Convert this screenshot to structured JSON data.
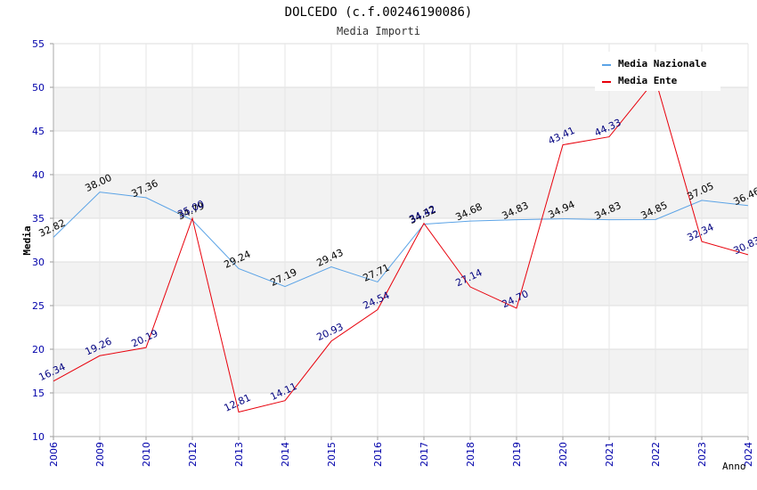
{
  "chart_data": {
    "type": "line",
    "title": "DOLCEDO (c.f.00246190086)",
    "subtitle": "Media Importi",
    "xlabel": "Anno",
    "ylabel": "Media",
    "ylim": [
      10,
      55
    ],
    "yticks": [
      10,
      15,
      20,
      25,
      30,
      35,
      40,
      45,
      50,
      55
    ],
    "grid": true,
    "legend_position": "top-right",
    "categories": [
      "2006",
      "2009",
      "2010",
      "2012",
      "2013",
      "2014",
      "2015",
      "2016",
      "2017",
      "2018",
      "2019",
      "2020",
      "2021",
      "2022",
      "2023",
      "2024"
    ],
    "series": [
      {
        "name": "Media Nazionale",
        "color": "#5ba3e6",
        "label_color": "#000000",
        "values": [
          32.82,
          38.0,
          37.36,
          34.79,
          29.24,
          27.19,
          29.43,
          27.71,
          34.32,
          34.68,
          34.83,
          34.94,
          34.83,
          34.85,
          37.05,
          36.46
        ],
        "labels": [
          "32.82",
          "38.00",
          "37.36",
          "34.79",
          "29.24",
          "27.19",
          "29.43",
          "27.71",
          "34.32",
          "34.68",
          "34.83",
          "34.94",
          "34.83",
          "34.85",
          "37.05",
          "36.46"
        ]
      },
      {
        "name": "Media Ente",
        "color": "#e8000b",
        "label_color": "#00007f",
        "values": [
          16.34,
          19.26,
          20.19,
          35.0,
          12.81,
          14.11,
          20.93,
          24.54,
          34.42,
          27.14,
          24.7,
          43.41,
          44.33,
          50.9,
          32.34,
          30.83
        ],
        "labels": [
          "16.34",
          "19.26",
          "20.19",
          "35.00",
          "12.81",
          "14.11",
          "20.93",
          "24.54",
          "34.42",
          "27.14",
          "24.70",
          "43.41",
          "44.33",
          "",
          "32.34",
          "30.83"
        ]
      }
    ]
  }
}
